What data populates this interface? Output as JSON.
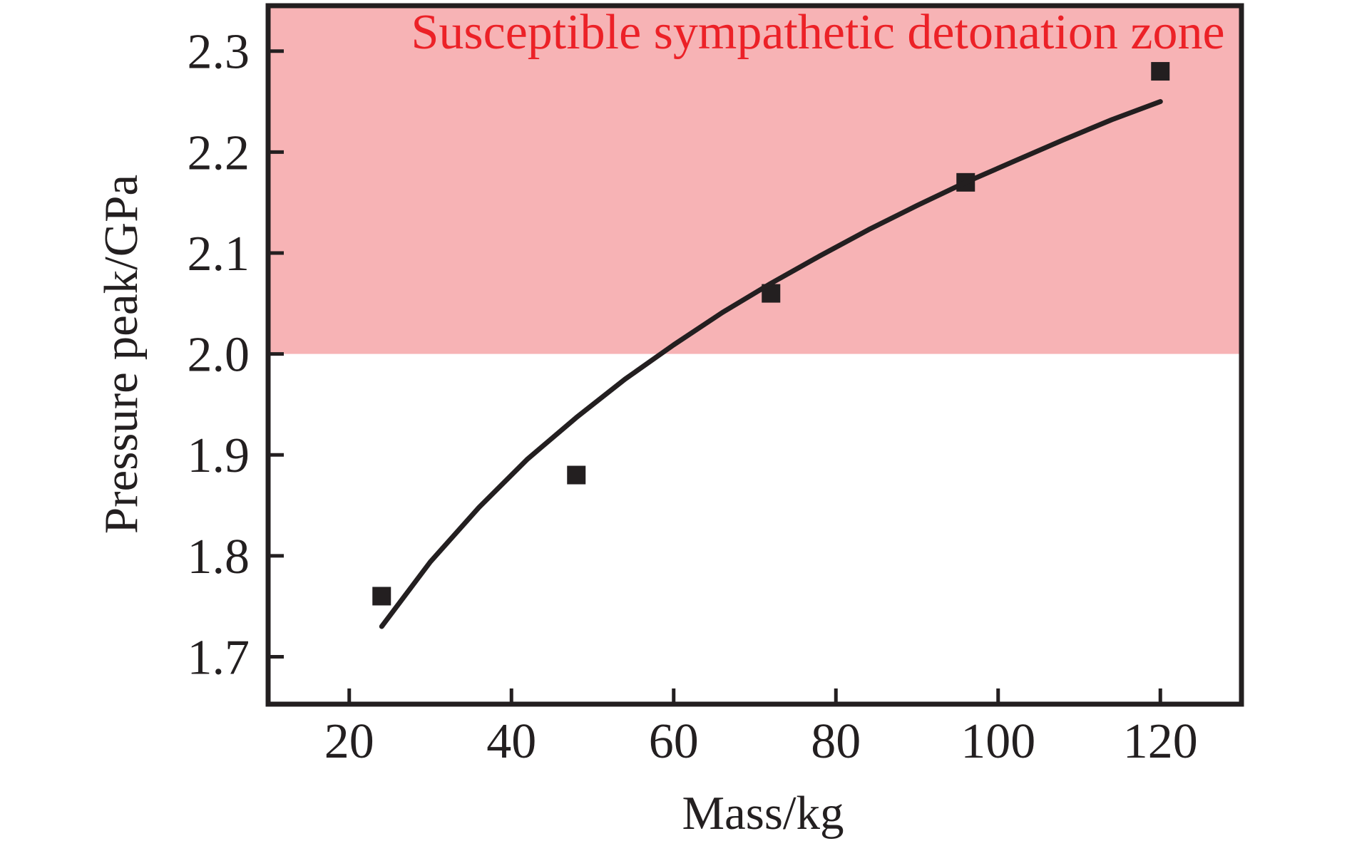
{
  "chart_data": {
    "type": "scatter",
    "xlabel": "Mass/kg",
    "ylabel": "Pressure peak/GPa",
    "xlim": [
      10,
      130
    ],
    "ylim": [
      1.653,
      2.345
    ],
    "x_ticks": [
      20,
      40,
      60,
      80,
      100,
      120
    ],
    "x_tick_labels": [
      "20",
      "40",
      "60",
      "80",
      "100",
      "120"
    ],
    "y_ticks": [
      1.7,
      1.8,
      1.9,
      2.0,
      2.1,
      2.2,
      2.3
    ],
    "y_tick_labels": [
      "1.7",
      "1.8",
      "1.9",
      "2.0",
      "2.1",
      "2.2",
      "2.3"
    ],
    "grid": false,
    "legend": "none",
    "axis_color": "#231f20",
    "zone": {
      "label": "Susceptible sympathetic detonation zone",
      "label_color": "#ec2127",
      "fill": "#f7b3b5",
      "from_pressure": 2.0,
      "to_pressure": 2.345
    },
    "series": [
      {
        "name": "data-points",
        "type": "scatter",
        "marker": "square",
        "color": "#231f20",
        "points": [
          [
            24,
            1.76
          ],
          [
            48,
            1.88
          ],
          [
            72,
            2.06
          ],
          [
            96,
            2.17
          ],
          [
            120,
            2.28
          ]
        ]
      },
      {
        "name": "fitted-curve",
        "type": "line",
        "color": "#231f20",
        "points": [
          [
            24,
            1.73
          ],
          [
            30,
            1.794
          ],
          [
            36,
            1.848
          ],
          [
            42,
            1.896
          ],
          [
            48,
            1.937
          ],
          [
            54,
            1.975
          ],
          [
            60,
            2.009
          ],
          [
            66,
            2.041
          ],
          [
            72,
            2.07
          ],
          [
            78,
            2.097
          ],
          [
            84,
            2.123
          ],
          [
            90,
            2.147
          ],
          [
            96,
            2.17
          ],
          [
            102,
            2.191
          ],
          [
            108,
            2.212
          ],
          [
            114,
            2.232
          ],
          [
            120,
            2.25
          ]
        ]
      }
    ]
  }
}
